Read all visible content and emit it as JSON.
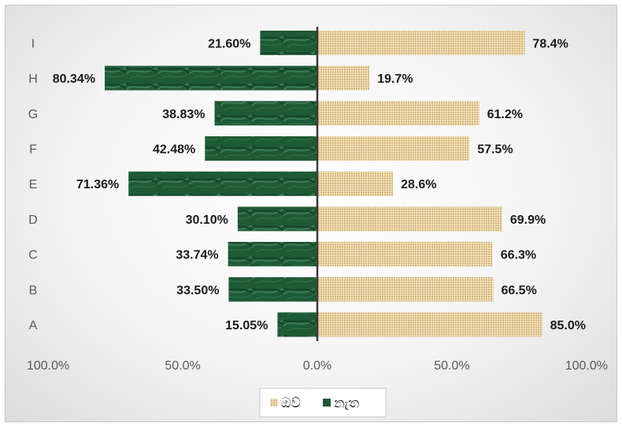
{
  "chart_data": {
    "type": "bar",
    "orientation": "horizontal",
    "layout": "diverging",
    "categories": [
      "A",
      "B",
      "C",
      "D",
      "E",
      "F",
      "G",
      "H",
      "I"
    ],
    "series": [
      {
        "name": "ඔව්",
        "direction": "right",
        "color": "#d9bf8c",
        "values": [
          85.0,
          66.5,
          66.3,
          69.9,
          28.6,
          57.5,
          61.2,
          19.7,
          78.4
        ],
        "labels": [
          "85.0%",
          "66.5%",
          "66.3%",
          "69.9%",
          "28.6%",
          "57.5%",
          "61.2%",
          "19.7%",
          "78.4%"
        ]
      },
      {
        "name": "නැත",
        "direction": "left",
        "color": "#1f5a36",
        "values": [
          15.05,
          33.5,
          33.74,
          30.1,
          71.36,
          42.48,
          38.83,
          80.34,
          21.6
        ],
        "labels": [
          "15.05%",
          "33.50%",
          "33.74%",
          "30.10%",
          "71.36%",
          "42.48%",
          "38.83%",
          "80.34%",
          "21.60%"
        ]
      }
    ],
    "xticks": [
      "100.0%",
      "50.0%",
      "0.0%",
      "50.0%",
      "100.0%"
    ],
    "xlim": [
      -100,
      100
    ],
    "grid": false,
    "legend": "bottom",
    "title": "",
    "xlabel": "",
    "ylabel": ""
  }
}
